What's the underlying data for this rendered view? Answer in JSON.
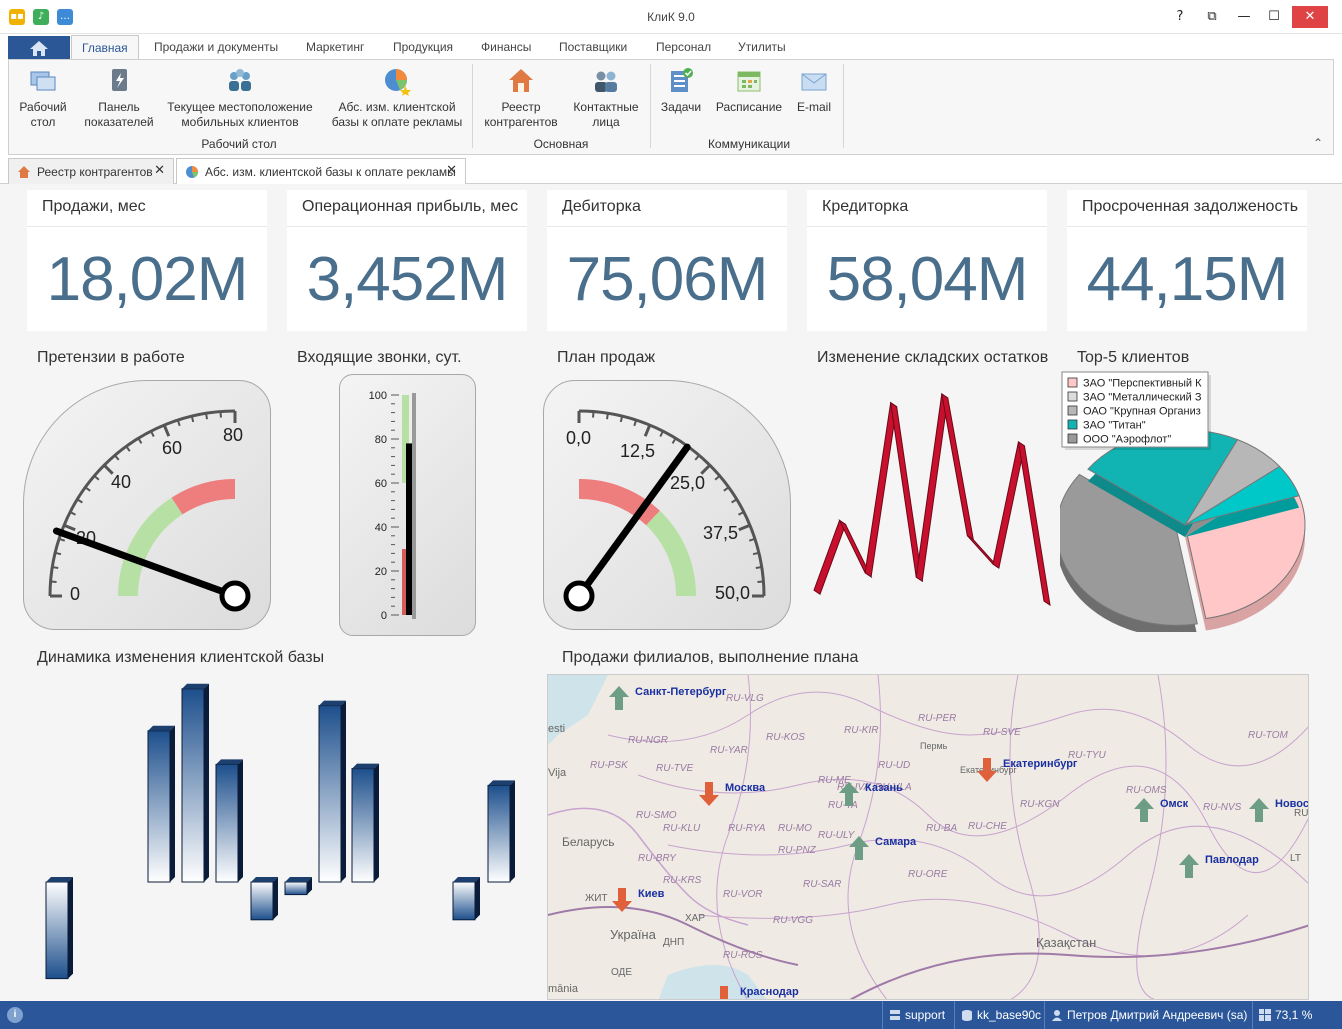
{
  "window": {
    "title": "КлиК 9.0",
    "help_label": "?",
    "controls": {
      "restore": "⧉",
      "minimize": "—",
      "maximize": "☐",
      "close": "✕"
    }
  },
  "ribbon": {
    "tabs": [
      "Главная",
      "Продажи и документы",
      "Маркетинг",
      "Продукция",
      "Финансы",
      "Поставщики",
      "Персонал",
      "Утилиты"
    ],
    "active_tab": "Главная",
    "buttons": [
      {
        "l1": "Рабочий",
        "l2": "стол",
        "icon": "desktop-icon"
      },
      {
        "l1": "Панель",
        "l2": "показателей",
        "icon": "dashboard-panel-icon"
      },
      {
        "l1": "Текущее местоположение",
        "l2": "мобильных клиентов",
        "icon": "mobile-clients-icon"
      },
      {
        "l1": "Абс. изм. клиентской",
        "l2": "базы к оплате рекламы",
        "icon": "pie-chart-icon"
      },
      {
        "l1": "Реестр",
        "l2": "контрагентов",
        "icon": "house-icon"
      },
      {
        "l1": "Контактные",
        "l2": "лица",
        "icon": "contacts-icon"
      },
      {
        "l1": "Задачи",
        "l2": "",
        "icon": "tasks-icon"
      },
      {
        "l1": "Расписание",
        "l2": "",
        "icon": "schedule-icon"
      },
      {
        "l1": "E-mail",
        "l2": "",
        "icon": "email-icon"
      }
    ],
    "groups": [
      "Рабочий стол",
      "Основная",
      "Коммуникации"
    ],
    "collapse_glyph": "⌃"
  },
  "doc_tabs": [
    {
      "label": "Реестр контрагентов",
      "close": "✕"
    },
    {
      "label": "Абс. изм. клиентской базы к оплате рекламы",
      "close": "✕"
    }
  ],
  "kpis": [
    {
      "title": "Продажи, мес",
      "value": "18,02M"
    },
    {
      "title": "Операционная прибыль, мес",
      "value": "3,452M"
    },
    {
      "title": "Дебиторка",
      "value": "75,06M"
    },
    {
      "title": "Кредиторка",
      "value": "58,04M"
    },
    {
      "title": "Просроченная задолженость",
      "value": "44,15M"
    }
  ],
  "gauges": {
    "claims": {
      "title": "Претензии в работе",
      "ticks": [
        "0",
        "20",
        "40",
        "60",
        "80"
      ],
      "value": 20
    },
    "calls": {
      "title": "Входящие звонки, сут.",
      "ticks": [
        "100",
        "80",
        "60",
        "40",
        "20",
        "0"
      ],
      "value": 78
    },
    "plan": {
      "title": "План продаж",
      "ticks": [
        "0,0",
        "12,5",
        "25,0",
        "37,5",
        "50,0"
      ],
      "value": 20
    }
  },
  "stock": {
    "title": "Изменение складских остатков",
    "values": [
      10,
      42,
      18,
      96,
      16,
      100,
      35,
      22,
      78,
      5
    ]
  },
  "top5": {
    "title": "Top-5 клиентов",
    "legend": [
      {
        "label": "ЗАО \"Перспективный К",
        "color": "#ffc7c7"
      },
      {
        "label": "ЗАО \"Металлический З",
        "color": "#dcdcdc"
      },
      {
        "label": "ОАО \"Крупная Организ",
        "color": "#b7b7b7"
      },
      {
        "label": "ЗАО \"Титан\"",
        "color": "#12b3b3"
      },
      {
        "label": "ООО \"Аэрофлот\"",
        "color": "#9a9a9a"
      }
    ]
  },
  "client_base": {
    "title": "Динамика изменения клиентской базы",
    "values": [
      -23,
      36,
      46,
      28,
      -9,
      -3,
      42,
      27,
      -9,
      23
    ]
  },
  "branch_map": {
    "title": "Продажи филиалов, выполнение плана",
    "cities": [
      {
        "name": "Санкт-Петербург",
        "trend": "up"
      },
      {
        "name": "Москва",
        "trend": "down"
      },
      {
        "name": "Казань",
        "trend": "up"
      },
      {
        "name": "Екатеринбург",
        "trend": "down"
      },
      {
        "name": "Омск",
        "trend": "up"
      },
      {
        "name": "Новосибирск",
        "label": "Новос",
        "trend": "up"
      },
      {
        "name": "Самара",
        "trend": "up"
      },
      {
        "name": "Павлодар",
        "trend": "up"
      },
      {
        "name": "Киев",
        "trend": "down"
      },
      {
        "name": "Краснодар",
        "trend": "down"
      }
    ],
    "regions": [
      "RU-VLG",
      "RU-NGR",
      "RU-KOS",
      "RU-YAR",
      "RU-PSK",
      "RU-TVE",
      "RU-IVA",
      "RU-VLA",
      "RU-ME",
      "RU-TA",
      "RU-KIR",
      "RU-PER",
      "RU-SVE",
      "RU-UD",
      "RU-TYU",
      "RU-TOM",
      "RU-KGN",
      "RU-OMS",
      "RU-NVS",
      "RU-SMO",
      "RU-KLU",
      "RU-RYA",
      "RU-MO",
      "RU-ULY",
      "RU-BA",
      "RU-CHE",
      "RU-BRY",
      "RU-PNZ",
      "RU-SAR",
      "RU-ORE",
      "RU-KRS",
      "RU-VOR",
      "RU-VGG",
      "RU-ROS"
    ],
    "places": [
      "esti",
      "Vija",
      "Беларусь",
      "Україна",
      "Қазақстан",
      "Пермь",
      "Екатеринбург",
      "ЖИТ",
      "ХАР",
      "ДНП",
      "ОДЕ",
      "mānia",
      "LT",
      "RU"
    ]
  },
  "statusbar": {
    "items": [
      {
        "label": "support",
        "icon": "server-icon"
      },
      {
        "label": "kk_base90c",
        "icon": "database-icon"
      },
      {
        "label": "Петров Дмитрий Андреевич (sa)",
        "icon": "user-icon"
      },
      {
        "label": "73,1 %",
        "icon": "windows-icon"
      }
    ]
  }
}
